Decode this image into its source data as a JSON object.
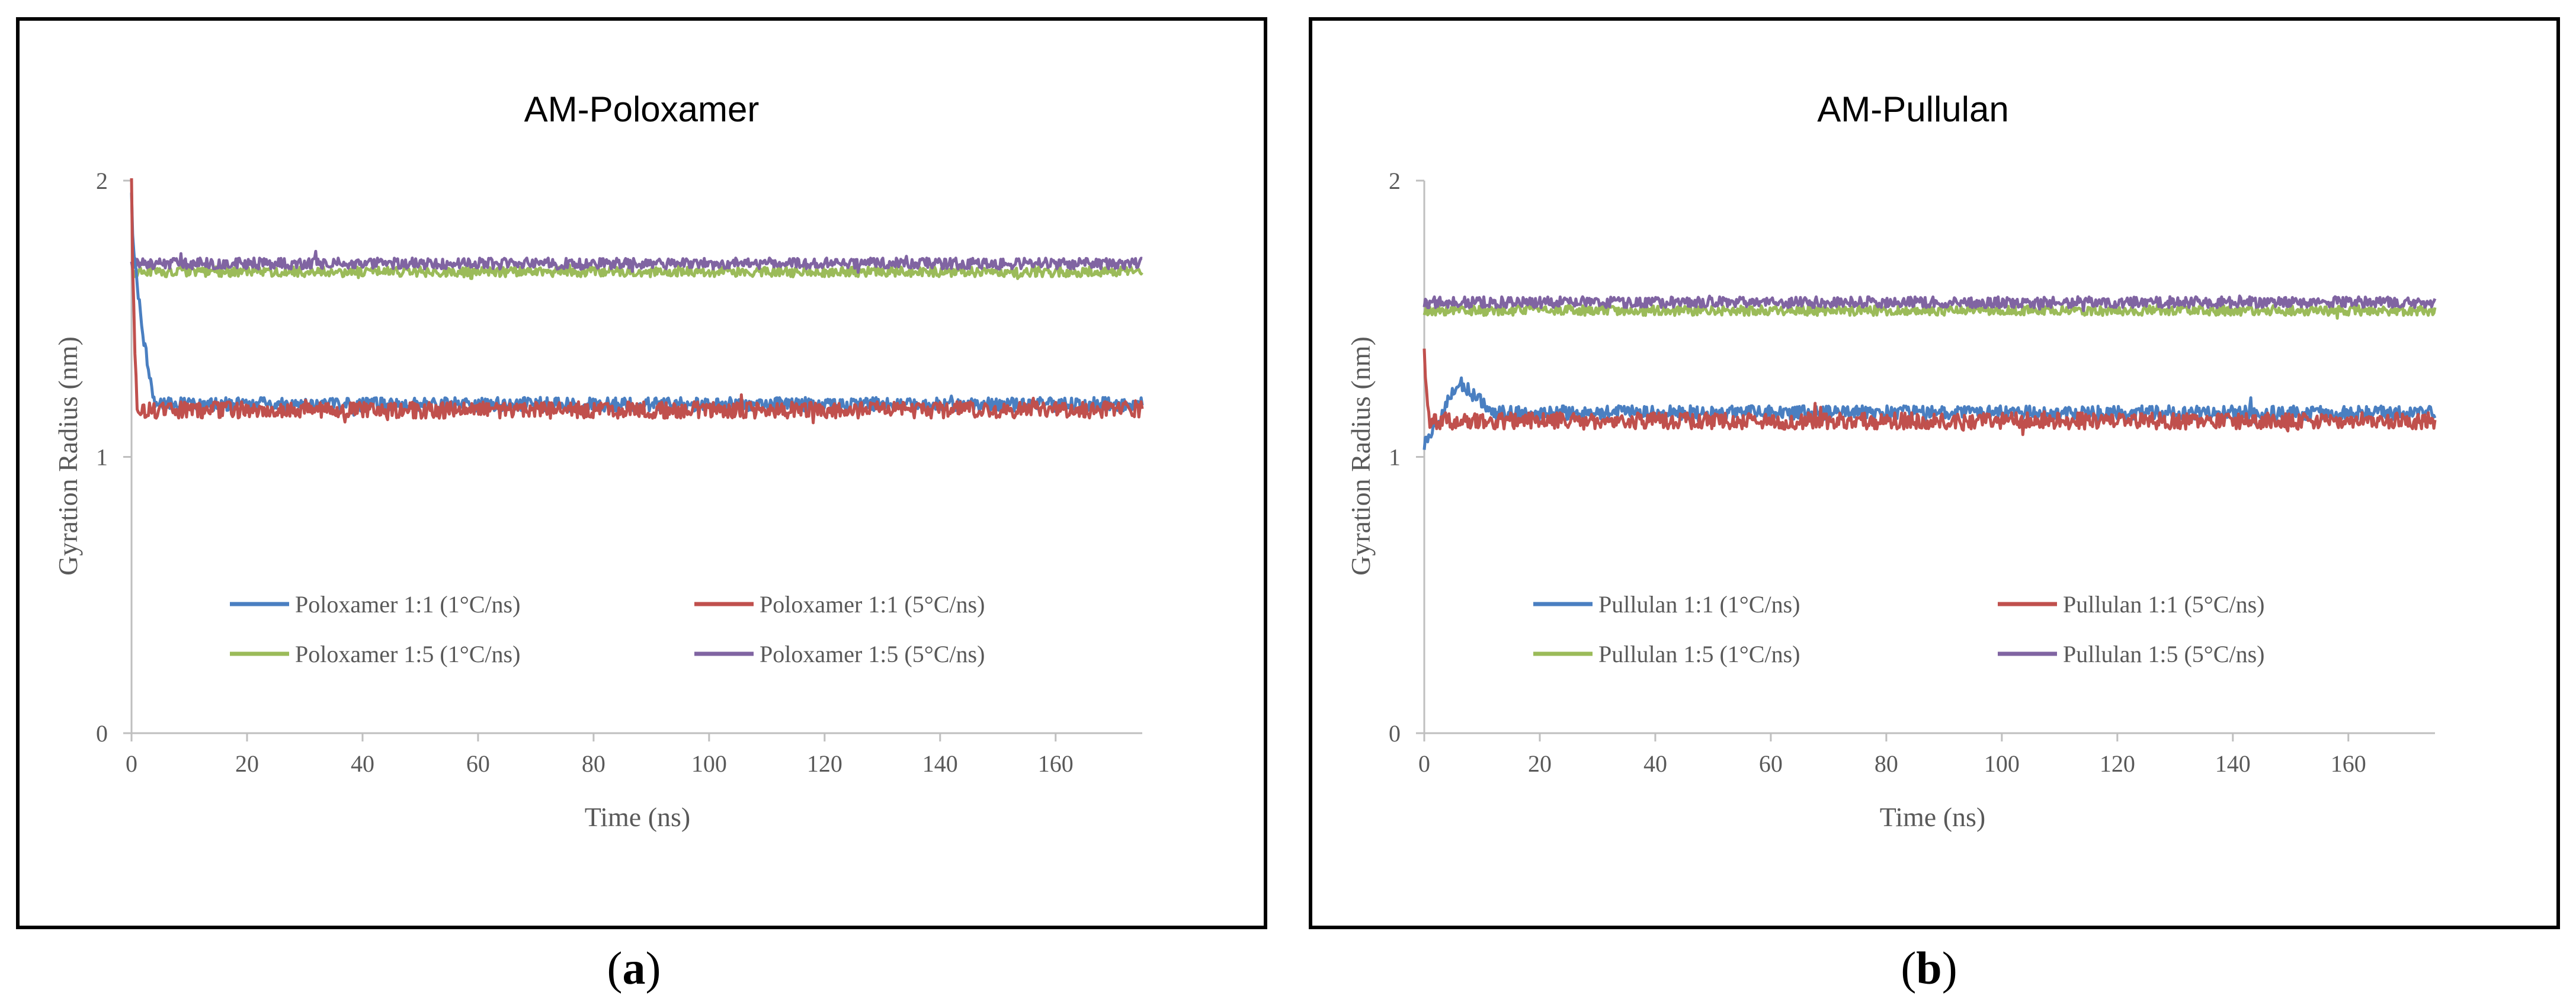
{
  "colors": {
    "s1": "#4a7fc1",
    "s2": "#c0504d",
    "s3": "#9bbb59",
    "s4": "#8064a2",
    "axis": "#bfbfbf",
    "text": "#595959",
    "frame": "#000000"
  },
  "chart_data": [
    {
      "type": "line",
      "panel_label": "a",
      "title": "AM-Poloxamer",
      "xlabel": "Time (ns)",
      "ylabel": "Gyration Radius (nm)",
      "xlim": [
        0,
        175
      ],
      "ylim": [
        0,
        2
      ],
      "xticks": [
        0,
        20,
        40,
        60,
        80,
        100,
        120,
        140,
        160
      ],
      "yticks": [
        0,
        1,
        2
      ],
      "grid": false,
      "legend_position": "center-bottom",
      "series": [
        {
          "name": "Poloxamer 1:1 (1°C/ns)",
          "color_key": "s1",
          "start": 1.95,
          "settle_time": 4,
          "plateau": 1.19,
          "noise": 0.025
        },
        {
          "name": "Poloxamer 1:1 (5°C/ns)",
          "color_key": "s2",
          "start": 2.0,
          "settle_time": 1,
          "plateau": 1.17,
          "noise": 0.03
        },
        {
          "name": "Poloxamer 1:5 (1°C/ns)",
          "color_key": "s3",
          "start": 1.67,
          "settle_time": 0,
          "plateau": 1.67,
          "noise": 0.018
        },
        {
          "name": "Poloxamer 1:5 (5°C/ns)",
          "color_key": "s4",
          "start": 1.7,
          "settle_time": 0,
          "plateau": 1.7,
          "noise": 0.02
        }
      ]
    },
    {
      "type": "line",
      "panel_label": "b",
      "title": "AM-Pullulan",
      "xlabel": "Time (ns)",
      "ylabel": "Gyration Radius (nm)",
      "xlim": [
        0,
        175
      ],
      "ylim": [
        0,
        2
      ],
      "xticks": [
        0,
        20,
        40,
        60,
        80,
        100,
        120,
        140,
        160
      ],
      "yticks": [
        0,
        1,
        2
      ],
      "grid": false,
      "legend_position": "center-bottom",
      "series": [
        {
          "name": "Pullulan 1:1 (1°C/ns)",
          "color_key": "s1",
          "start": 1.05,
          "settle_time": 12,
          "plateau": 1.16,
          "noise": 0.025,
          "bump": 1.27
        },
        {
          "name": "Pullulan 1:1 (5°C/ns)",
          "color_key": "s2",
          "start": 1.42,
          "settle_time": 1,
          "plateau": 1.13,
          "noise": 0.03
        },
        {
          "name": "Pullulan 1:5 (1°C/ns)",
          "color_key": "s3",
          "start": 1.53,
          "settle_time": 0,
          "plateau": 1.53,
          "noise": 0.018
        },
        {
          "name": "Pullulan 1:5 (5°C/ns)",
          "color_key": "s4",
          "start": 1.57,
          "settle_time": 0,
          "plateau": 1.56,
          "noise": 0.02
        }
      ]
    }
  ]
}
